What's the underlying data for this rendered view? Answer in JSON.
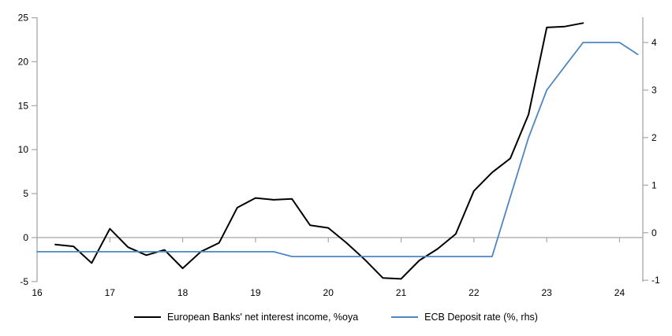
{
  "chart_data": {
    "type": "line",
    "title": "",
    "xlabel": "",
    "ylabel_left": "",
    "ylabel_right": "",
    "x_axis": {
      "ticks": [
        16,
        17,
        18,
        19,
        20,
        21,
        22,
        23,
        24
      ],
      "min": 16,
      "max": 24.32
    },
    "left_axis": {
      "ticks": [
        -5,
        0,
        5,
        10,
        15,
        20,
        25
      ],
      "min": -5.02,
      "max": 25.05
    },
    "right_axis": {
      "ticks": [
        -1,
        0,
        1,
        2,
        3,
        4
      ],
      "min": -1.03,
      "max": 4.53
    },
    "zero_line": true,
    "grid": false,
    "legend_position": "bottom",
    "series": [
      {
        "name": "European Banks' net interest income, %oya",
        "axis": "left",
        "color": "#000000",
        "width": 2,
        "x": [
          16.25,
          16.5,
          16.75,
          17.0,
          17.25,
          17.5,
          17.75,
          18.0,
          18.25,
          18.5,
          18.75,
          19.0,
          19.25,
          19.5,
          19.75,
          20.0,
          20.25,
          20.5,
          20.75,
          21.0,
          21.25,
          21.5,
          21.75,
          22.0,
          22.25,
          22.5,
          22.75,
          23.0,
          23.25,
          23.5
        ],
        "values": [
          -0.8,
          -1.0,
          -2.9,
          1.0,
          -1.1,
          -2.0,
          -1.4,
          -3.5,
          -1.6,
          -0.6,
          3.4,
          4.5,
          4.3,
          4.4,
          1.4,
          1.1,
          -0.6,
          -2.5,
          -4.6,
          -4.7,
          -2.6,
          -1.3,
          0.4,
          5.3,
          7.4,
          9.0,
          14.0,
          23.9,
          24.0,
          24.4
        ]
      },
      {
        "name": "ECB Deposit rate (%, rhs)",
        "axis": "right",
        "color": "#4e86c2",
        "width": 1.8,
        "x": [
          16.0,
          16.25,
          16.5,
          16.75,
          17.0,
          17.25,
          17.5,
          17.75,
          18.0,
          18.25,
          18.5,
          18.75,
          19.0,
          19.25,
          19.5,
          19.75,
          20.0,
          20.25,
          20.5,
          20.75,
          21.0,
          21.25,
          21.5,
          21.75,
          22.0,
          22.25,
          22.5,
          22.75,
          23.0,
          23.25,
          23.5,
          23.75,
          24.0,
          24.25
        ],
        "values": [
          -0.4,
          -0.4,
          -0.4,
          -0.4,
          -0.4,
          -0.4,
          -0.4,
          -0.4,
          -0.4,
          -0.4,
          -0.4,
          -0.4,
          -0.4,
          -0.4,
          -0.5,
          -0.5,
          -0.5,
          -0.5,
          -0.5,
          -0.5,
          -0.5,
          -0.5,
          -0.5,
          -0.5,
          -0.5,
          -0.5,
          0.75,
          2.0,
          3.0,
          3.5,
          4.0,
          4.0,
          4.0,
          3.75
        ]
      }
    ]
  },
  "legend": {
    "item1": "European Banks' net interest income, %oya",
    "item2": "ECB Deposit rate (%, rhs)"
  },
  "colors": {
    "series_nii": "#000000",
    "series_ecb": "#4e86c2",
    "axis_gray": "#a6a6a6",
    "background": "#ffffff",
    "text": "#000000"
  }
}
